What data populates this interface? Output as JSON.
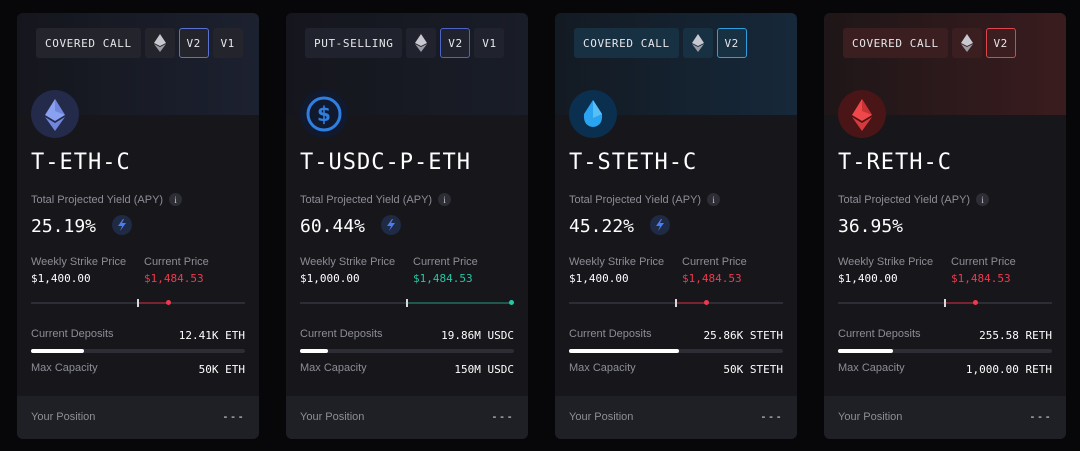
{
  "labels": {
    "yield": "Total Projected Yield (APY)",
    "strike": "Weekly Strike Price",
    "current_price": "Current Price",
    "deposits": "Current Deposits",
    "capacity": "Max Capacity",
    "position": "Your Position",
    "info": "i"
  },
  "colors": {
    "eth": "#627eea",
    "usdc": "#2775ca",
    "steth": "#1e9ee8",
    "reth": "#e8453f",
    "negative": "#ee3a4f",
    "positive": "#27c6a5"
  },
  "vaults": [
    {
      "strategy": "COVERED CALL",
      "asset_icon": "eth-icon",
      "versions": [
        "V2",
        "V1"
      ],
      "active_version": "V2",
      "name": "T-ETH-C",
      "logo_icon": "eth-logo",
      "apy": "25.19%",
      "show_boost": true,
      "strike": "$1,400.00",
      "current_price": "$1,484.53",
      "price_direction": "negative",
      "deposits": "12.41K ETH",
      "deposits_fraction": 0.248,
      "capacity": "50K ETH",
      "position": "---"
    },
    {
      "strategy": "PUT-SELLING",
      "asset_icon": "eth-icon",
      "versions": [
        "V2",
        "V1"
      ],
      "active_version": "V2",
      "name": "T-USDC-P-ETH",
      "logo_icon": "usdc-logo",
      "apy": "60.44%",
      "show_boost": true,
      "strike": "$1,000.00",
      "current_price": "$1,484.53",
      "price_direction": "positive",
      "deposits": "19.86M USDC",
      "deposits_fraction": 0.132,
      "capacity": "150M USDC",
      "position": "---"
    },
    {
      "strategy": "COVERED CALL",
      "asset_icon": "eth-icon",
      "versions": [
        "V2"
      ],
      "active_version": "V2",
      "name": "T-STETH-C",
      "logo_icon": "steth-logo",
      "apy": "45.22%",
      "show_boost": true,
      "strike": "$1,400.00",
      "current_price": "$1,484.53",
      "price_direction": "negative",
      "deposits": "25.86K STETH",
      "deposits_fraction": 0.517,
      "capacity": "50K STETH",
      "position": "---"
    },
    {
      "strategy": "COVERED CALL",
      "asset_icon": "eth-icon",
      "versions": [
        "V2"
      ],
      "active_version": "V2",
      "name": "T-RETH-C",
      "logo_icon": "reth-logo",
      "apy": "36.95%",
      "show_boost": false,
      "strike": "$1,400.00",
      "current_price": "$1,484.53",
      "price_direction": "negative",
      "deposits": "255.58 RETH",
      "deposits_fraction": 0.256,
      "capacity": "1,000.00 RETH",
      "position": "---"
    }
  ]
}
